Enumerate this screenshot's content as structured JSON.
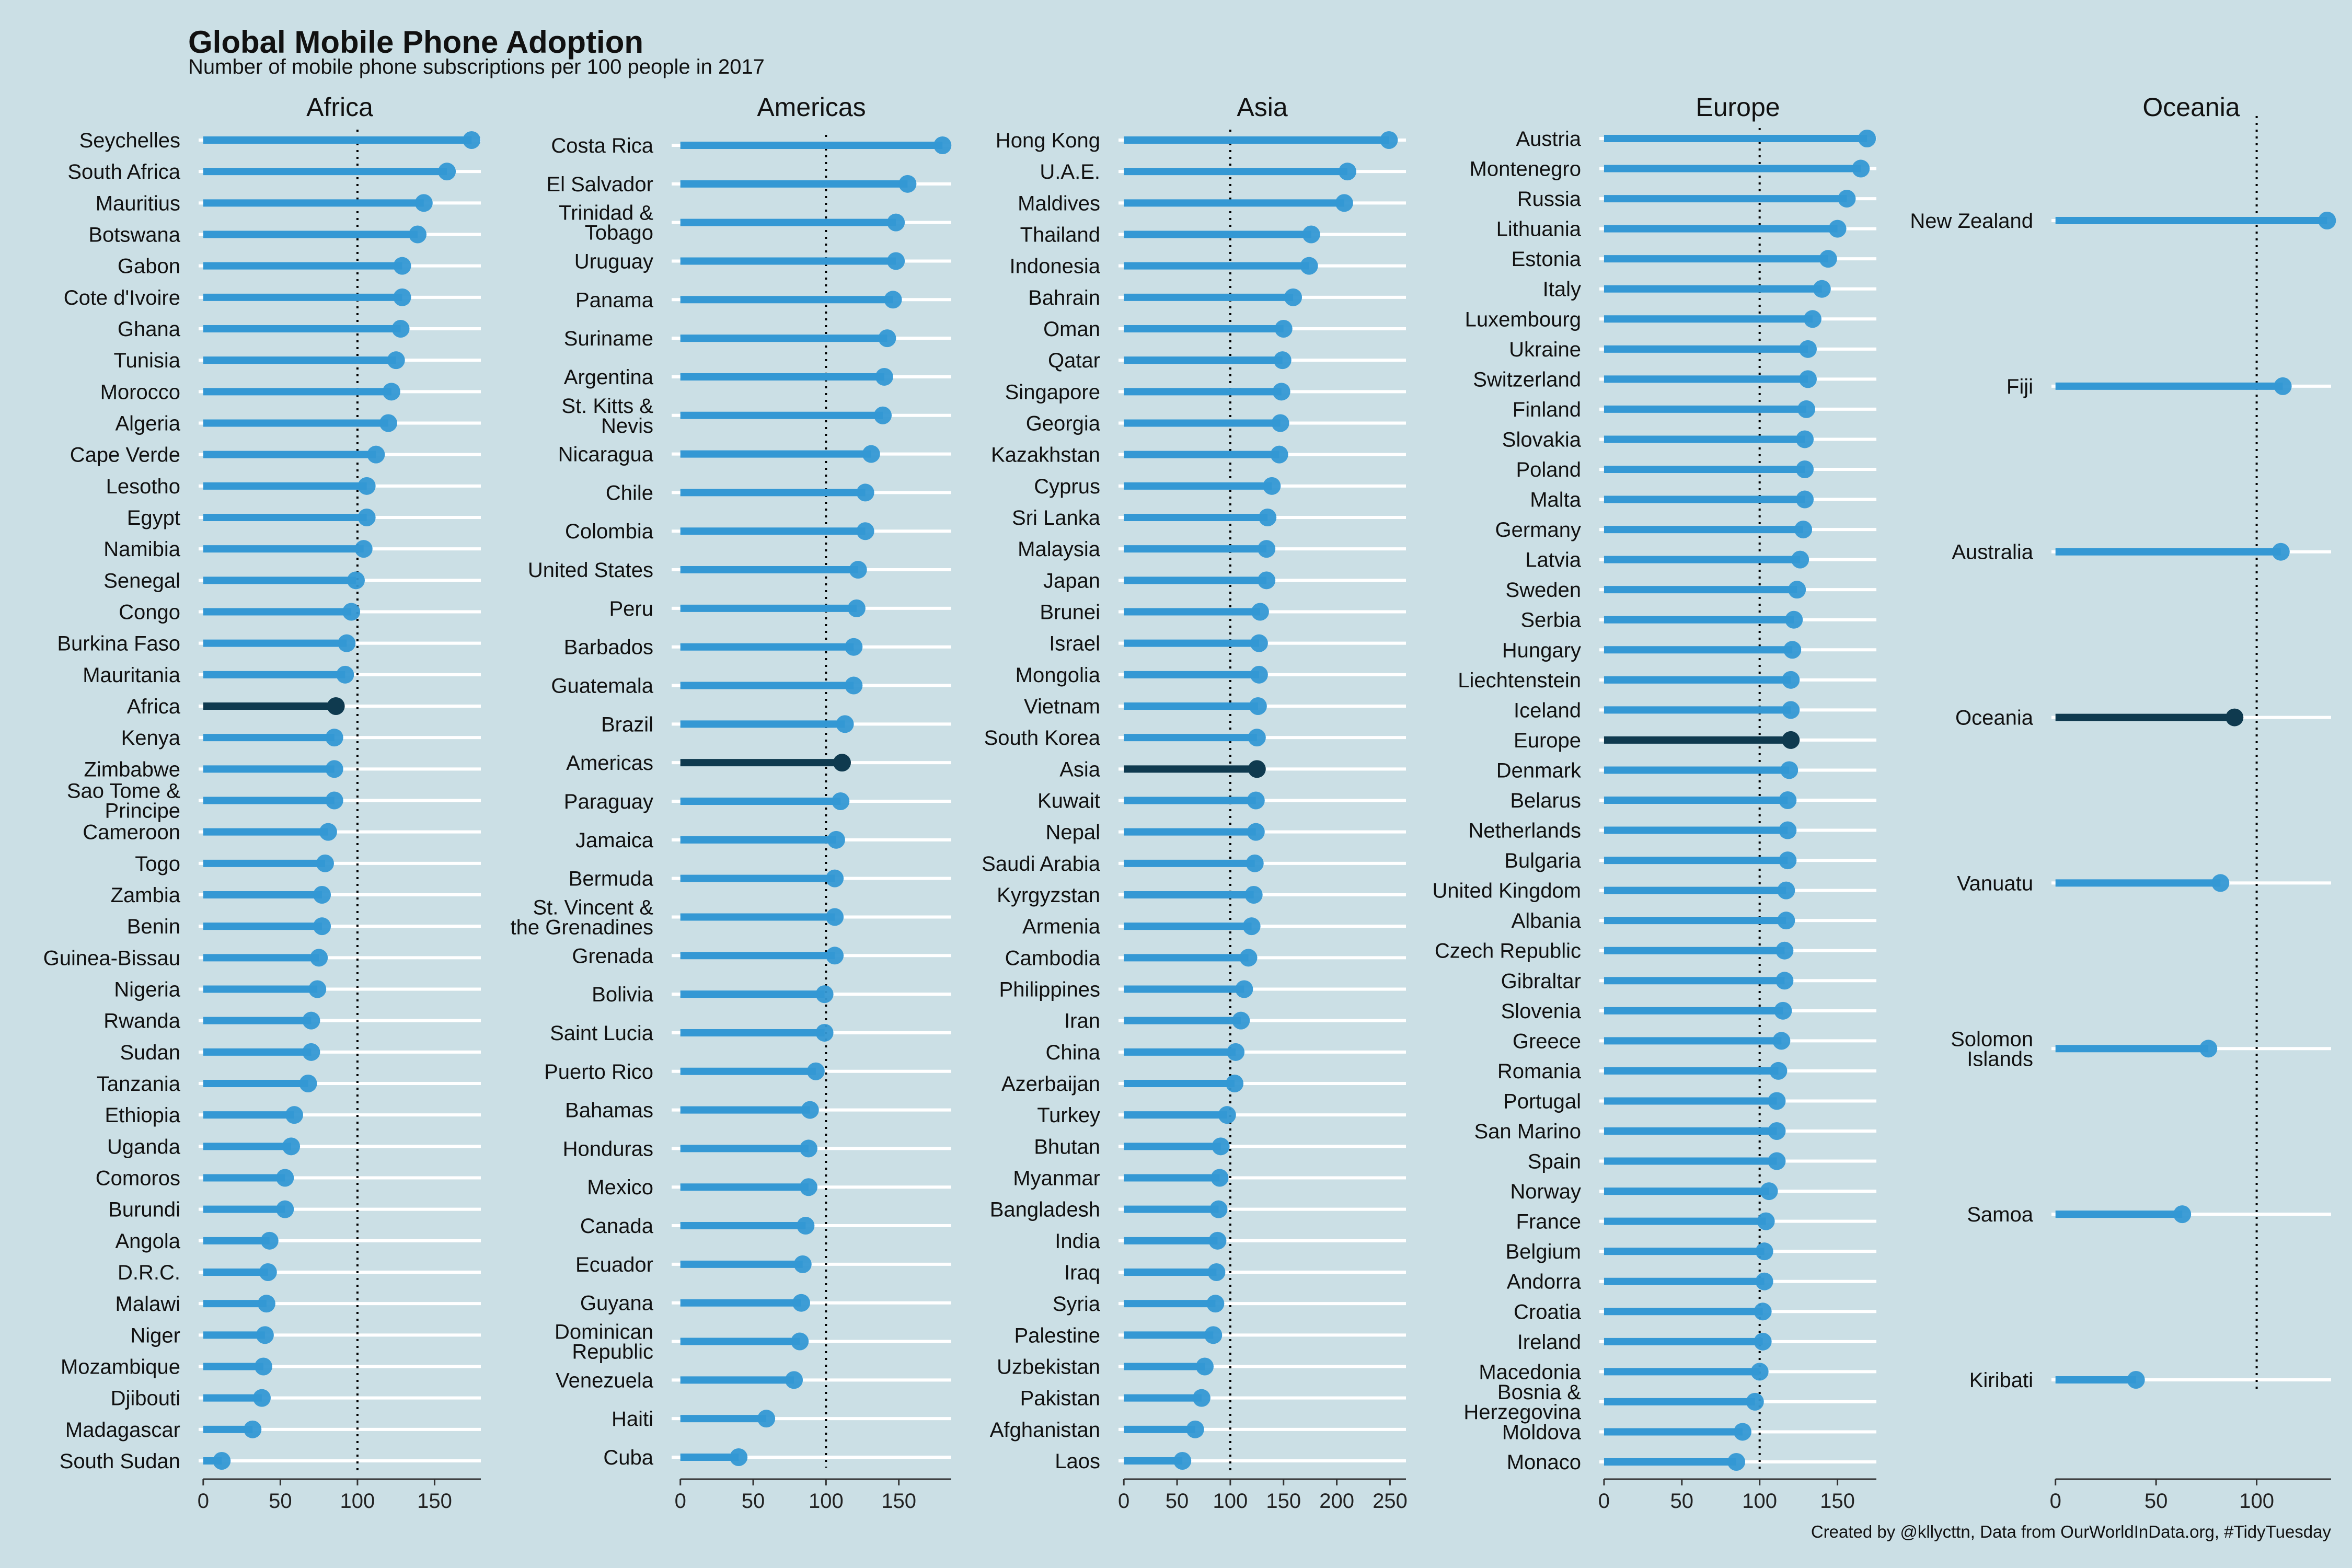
{
  "title": "Global Mobile Phone Adoption",
  "subtitle": "Number of mobile phone subscriptions per 100 people in 2017",
  "caption": "Created by @kllycttn, Data from OurWorldInData.org, #TidyTuesday",
  "colors": {
    "background": "#cbdfe5",
    "country": "#3498d4",
    "continent": "#0f3a4f",
    "gridline": "#ffffff",
    "reference_line": "#000000"
  },
  "chart_data": {
    "type": "lollipop",
    "reference_value": 100,
    "highlight_rule": "continent aggregate drawn in dark color",
    "panels": [
      {
        "title": "Africa",
        "xticks": [
          0,
          50,
          100,
          150
        ],
        "xlim": [
          -3,
          180
        ],
        "categories": [
          "Seychelles",
          "South Africa",
          "Mauritius",
          "Botswana",
          "Gabon",
          "Cote d'Ivoire",
          "Ghana",
          "Tunisia",
          "Morocco",
          "Algeria",
          "Cape Verde",
          "Lesotho",
          "Egypt",
          "Namibia",
          "Senegal",
          "Congo",
          "Burkina Faso",
          "Mauritania",
          "Africa",
          "Kenya",
          "Zimbabwe",
          "Sao Tome & Principe",
          "Cameroon",
          "Togo",
          "Zambia",
          "Benin",
          "Guinea-Bissau",
          "Nigeria",
          "Rwanda",
          "Sudan",
          "Tanzania",
          "Ethiopia",
          "Uganda",
          "Comoros",
          "Burundi",
          "Angola",
          "D.R.C.",
          "Malawi",
          "Niger",
          "Mozambique",
          "Djibouti",
          "Madagascar",
          "South Sudan"
        ],
        "values": [
          174,
          158,
          143,
          139,
          129,
          129,
          128,
          125,
          122,
          120,
          112,
          106,
          106,
          104,
          99,
          96,
          93,
          92,
          86,
          85,
          85,
          85,
          81,
          79,
          77,
          77,
          75,
          74,
          70,
          70,
          68,
          59,
          57,
          53,
          53,
          43,
          42,
          41,
          40,
          39,
          38,
          32,
          12
        ],
        "highlight": "Africa"
      },
      {
        "title": "Americas",
        "xticks": [
          0,
          50,
          100,
          150
        ],
        "xlim": [
          -6,
          186
        ],
        "categories": [
          "Costa Rica",
          "El Salvador",
          "Trinidad & Tobago",
          "Uruguay",
          "Panama",
          "Suriname",
          "Argentina",
          "St. Kitts & Nevis",
          "Nicaragua",
          "Chile",
          "Colombia",
          "United States",
          "Peru",
          "Barbados",
          "Guatemala",
          "Brazil",
          "Americas",
          "Paraguay",
          "Jamaica",
          "Bermuda",
          "St. Vincent & the Grenadines",
          "Grenada",
          "Bolivia",
          "Saint Lucia",
          "Puerto Rico",
          "Bahamas",
          "Honduras",
          "Mexico",
          "Canada",
          "Ecuador",
          "Guyana",
          "Dominican Republic",
          "Venezuela",
          "Haiti",
          "Cuba"
        ],
        "values": [
          180,
          156,
          148,
          148,
          146,
          142,
          140,
          139,
          131,
          127,
          127,
          122,
          121,
          119,
          119,
          113,
          111,
          110,
          107,
          106,
          106,
          106,
          99,
          99,
          93,
          89,
          88,
          88,
          86,
          84,
          83,
          82,
          78,
          59,
          40
        ],
        "highlight": "Americas"
      },
      {
        "title": "Asia",
        "xticks": [
          0,
          50,
          100,
          150,
          200,
          250
        ],
        "xlim": [
          -5,
          265
        ],
        "categories": [
          "Hong Kong",
          "U.A.E.",
          "Maldives",
          "Thailand",
          "Indonesia",
          "Bahrain",
          "Oman",
          "Qatar",
          "Singapore",
          "Georgia",
          "Kazakhstan",
          "Cyprus",
          "Sri Lanka",
          "Malaysia",
          "Japan",
          "Brunei",
          "Israel",
          "Mongolia",
          "Vietnam",
          "South Korea",
          "Asia",
          "Kuwait",
          "Nepal",
          "Saudi Arabia",
          "Kyrgyzstan",
          "Armenia",
          "Cambodia",
          "Philippines",
          "Iran",
          "China",
          "Azerbaijan",
          "Turkey",
          "Bhutan",
          "Myanmar",
          "Bangladesh",
          "India",
          "Iraq",
          "Syria",
          "Palestine",
          "Uzbekistan",
          "Pakistan",
          "Afghanistan",
          "Laos"
        ],
        "values": [
          249,
          210,
          207,
          176,
          174,
          159,
          150,
          149,
          148,
          147,
          146,
          139,
          135,
          134,
          134,
          128,
          127,
          127,
          126,
          125,
          125,
          124,
          124,
          123,
          122,
          120,
          117,
          113,
          110,
          105,
          104,
          97,
          91,
          90,
          89,
          88,
          87,
          86,
          84,
          76,
          73,
          67,
          55
        ],
        "highlight": "Asia"
      },
      {
        "title": "Europe",
        "xticks": [
          0,
          50,
          100,
          150
        ],
        "xlim": [
          -3,
          175
        ],
        "categories": [
          "Austria",
          "Montenegro",
          "Russia",
          "Lithuania",
          "Estonia",
          "Italy",
          "Luxembourg",
          "Ukraine",
          "Switzerland",
          "Finland",
          "Slovakia",
          "Poland",
          "Malta",
          "Germany",
          "Latvia",
          "Sweden",
          "Serbia",
          "Hungary",
          "Liechtenstein",
          "Iceland",
          "Europe",
          "Denmark",
          "Belarus",
          "Netherlands",
          "Bulgaria",
          "United Kingdom",
          "Albania",
          "Czech Republic",
          "Gibraltar",
          "Slovenia",
          "Greece",
          "Romania",
          "Portugal",
          "San Marino",
          "Spain",
          "Norway",
          "France",
          "Belgium",
          "Andorra",
          "Croatia",
          "Ireland",
          "Macedonia",
          "Bosnia & Herzegovina",
          "Moldova",
          "Monaco"
        ],
        "values": [
          169,
          165,
          156,
          150,
          144,
          140,
          134,
          131,
          131,
          130,
          129,
          129,
          129,
          128,
          126,
          124,
          122,
          121,
          120,
          120,
          120,
          119,
          118,
          118,
          118,
          117,
          117,
          116,
          116,
          115,
          114,
          112,
          111,
          111,
          111,
          106,
          104,
          103,
          103,
          102,
          102,
          100,
          97,
          89,
          85
        ],
        "highlight": "Europe"
      },
      {
        "title": "Oceania",
        "xticks": [
          0,
          50,
          100
        ],
        "xlim": [
          -2,
          137
        ],
        "categories": [
          "New Zealand",
          "Fiji",
          "Australia",
          "Oceania",
          "Vanuatu",
          "Solomon Islands",
          "Samoa",
          "Kiribati"
        ],
        "values": [
          135,
          113,
          112,
          89,
          82,
          76,
          63,
          40
        ],
        "highlight": "Oceania"
      }
    ]
  }
}
